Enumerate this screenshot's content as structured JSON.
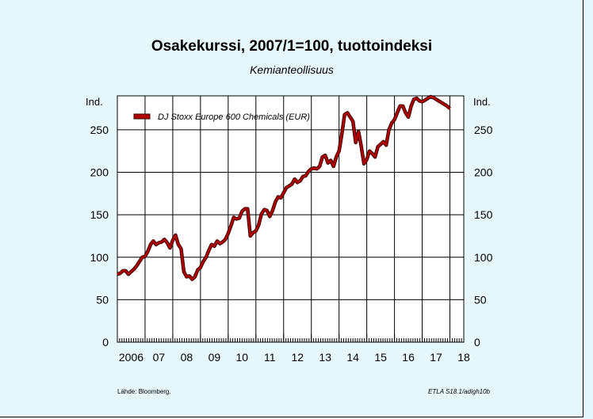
{
  "title": "Osakekurssi, 2007/1=100, tuottoindeksi",
  "subtitle": "Kemianteollisuus",
  "source": "Lähde:     Bloomberg.",
  "code": "ETLA S18.1/adigh10b",
  "chart_data": {
    "type": "line",
    "title": "Osakekurssi, 2007/1=100, tuottoindeksi",
    "subtitle": "Kemianteollisuus",
    "ylabel_left": "Ind.",
    "ylabel_right": "Ind.",
    "ylim": [
      0,
      290
    ],
    "yticks": [
      0,
      50,
      100,
      150,
      200,
      250
    ],
    "xlim": [
      2006.0,
      2018.5
    ],
    "xtick_labels": [
      "2006",
      "07",
      "08",
      "09",
      "10",
      "11",
      "12",
      "13",
      "14",
      "15",
      "16",
      "17",
      "18"
    ],
    "grid": true,
    "legend_position": "top-left",
    "series": [
      {
        "name": "DJ Stoxx Europe 600 Chemicals (EUR)",
        "color": "#b30000",
        "x": [
          2006.0,
          2006.1,
          2006.2,
          2006.3,
          2006.4,
          2006.5,
          2006.6,
          2006.7,
          2006.8,
          2006.9,
          2007.0,
          2007.1,
          2007.2,
          2007.3,
          2007.4,
          2007.5,
          2007.6,
          2007.7,
          2007.8,
          2007.9,
          2008.0,
          2008.1,
          2008.2,
          2008.3,
          2008.4,
          2008.5,
          2008.6,
          2008.7,
          2008.8,
          2008.9,
          2009.0,
          2009.1,
          2009.2,
          2009.3,
          2009.4,
          2009.5,
          2009.6,
          2009.7,
          2009.8,
          2009.9,
          2010.0,
          2010.1,
          2010.2,
          2010.3,
          2010.4,
          2010.5,
          2010.6,
          2010.7,
          2010.8,
          2010.9,
          2011.0,
          2011.1,
          2011.2,
          2011.3,
          2011.4,
          2011.5,
          2011.6,
          2011.7,
          2011.8,
          2011.9,
          2012.0,
          2012.1,
          2012.2,
          2012.3,
          2012.4,
          2012.5,
          2012.6,
          2012.7,
          2012.8,
          2012.9,
          2013.0,
          2013.1,
          2013.2,
          2013.3,
          2013.4,
          2013.5,
          2013.6,
          2013.7,
          2013.8,
          2013.9,
          2014.0,
          2014.1,
          2014.2,
          2014.3,
          2014.4,
          2014.5,
          2014.6,
          2014.7,
          2014.8,
          2014.9,
          2015.0,
          2015.1,
          2015.2,
          2015.3,
          2015.4,
          2015.5,
          2015.6,
          2015.7,
          2015.8,
          2015.9,
          2016.0,
          2016.1,
          2016.2,
          2016.3,
          2016.4,
          2016.5,
          2016.6,
          2016.7,
          2016.8,
          2016.9,
          2017.0,
          2017.1,
          2017.2,
          2017.3,
          2017.4,
          2017.5,
          2017.6,
          2017.7,
          2017.8,
          2017.9,
          2018.0
        ],
        "values": [
          80,
          81,
          84,
          84,
          80,
          83,
          86,
          90,
          95,
          100,
          101,
          107,
          115,
          119,
          115,
          117,
          118,
          121,
          117,
          111,
          120,
          126,
          115,
          110,
          83,
          77,
          78,
          74,
          77,
          85,
          88,
          95,
          100,
          108,
          115,
          113,
          119,
          116,
          118,
          121,
          128,
          137,
          147,
          145,
          146,
          154,
          157,
          157,
          125,
          129,
          131,
          138,
          151,
          156,
          155,
          148,
          155,
          165,
          171,
          170,
          176,
          182,
          184,
          186,
          192,
          188,
          190,
          195,
          196,
          201,
          204,
          205,
          204,
          207,
          218,
          220,
          211,
          214,
          207,
          218,
          225,
          245,
          268,
          270,
          265,
          260,
          235,
          248,
          231,
          210,
          215,
          225,
          222,
          218,
          230,
          233,
          236,
          232,
          250,
          258,
          262,
          270,
          278,
          278,
          270,
          265,
          278,
          286,
          287,
          284,
          283,
          285,
          287,
          289,
          288,
          286,
          284,
          282,
          280,
          278,
          275
        ]
      }
    ]
  }
}
